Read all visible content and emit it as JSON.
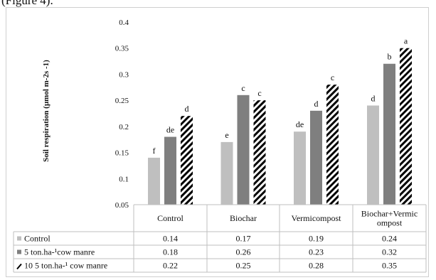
{
  "caption": "(Figure 4).",
  "chart_data": {
    "type": "bar",
    "title": "",
    "xlabel": "",
    "ylabel": "Soil respiration (µmol m-2s -1)",
    "ylim": [
      0.05,
      0.4
    ],
    "yticks": [
      "0.05",
      "0.1",
      "0.15",
      "0.2",
      "0.25",
      "0.3",
      "0.35",
      "0.4"
    ],
    "grid": false,
    "legend": "data-table",
    "categories": [
      "Control",
      "Biochar",
      "Vermicompost",
      "Biochar+Vermic ompost"
    ],
    "category_label_lines": [
      [
        "Control"
      ],
      [
        "Biochar"
      ],
      [
        "Vermicompost"
      ],
      [
        "Biochar+Vermic",
        "ompost"
      ]
    ],
    "series": [
      {
        "name": "Control",
        "values": [
          0.14,
          0.17,
          0.19,
          0.24
        ],
        "display": [
          "0.14",
          "0.17",
          "0.19",
          "0.24"
        ],
        "letters": [
          "f",
          "e",
          "de",
          "d"
        ],
        "color": "#bfbfbf",
        "pattern": "solid"
      },
      {
        "name": "5 ton.ha-¹cow manre",
        "values": [
          0.18,
          0.26,
          0.23,
          0.32
        ],
        "display": [
          "0.18",
          "0.26",
          "0.23",
          "0.32"
        ],
        "letters": [
          "de",
          "c",
          "d",
          "b"
        ],
        "color": "#7f7f7f",
        "pattern": "solid"
      },
      {
        "name": "10  5 ton.ha-¹ cow manre",
        "values": [
          0.22,
          0.25,
          0.28,
          0.35
        ],
        "display": [
          "0.22",
          "0.25",
          "0.28",
          "0.35"
        ],
        "letters": [
          "d",
          "c",
          "c",
          "a"
        ],
        "color": "#000000",
        "pattern": "diagonal-hatch"
      }
    ]
  }
}
